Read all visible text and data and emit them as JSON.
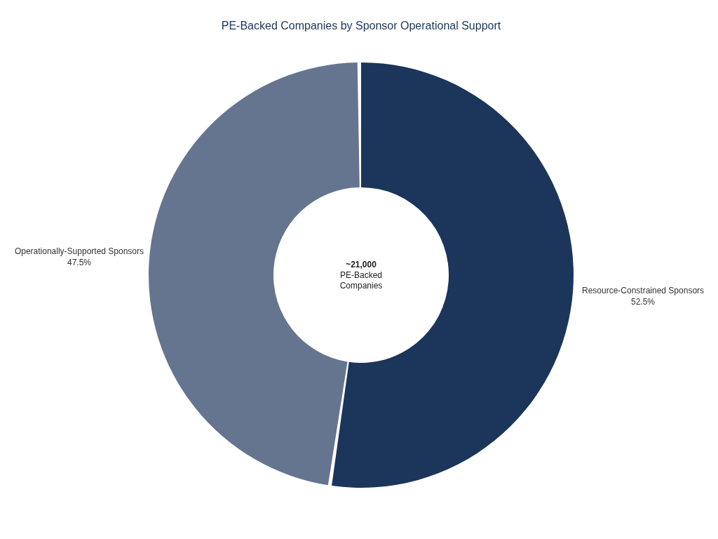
{
  "chart_data": {
    "type": "donut",
    "title": "PE-Backed Companies by Sponsor Operational Support",
    "categories": [
      "Resource-Constrained Sponsors",
      "Operationally-Supported Sponsors"
    ],
    "values": [
      52.5,
      47.5
    ],
    "value_labels": [
      "52.5%",
      "47.5%"
    ],
    "colors": [
      "#1b355b",
      "#657590"
    ],
    "annotations": [
      "~21,000",
      "PE-Backed",
      "Companies"
    ]
  }
}
